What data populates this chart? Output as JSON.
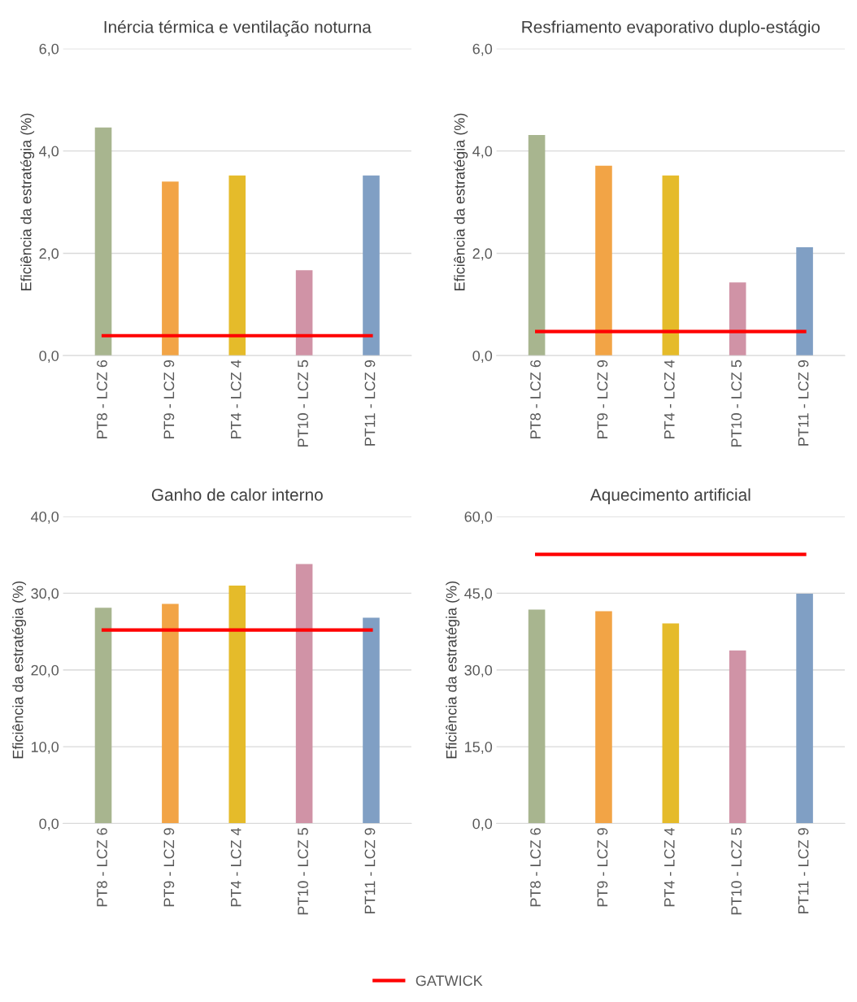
{
  "chart_data": [
    {
      "type": "bar",
      "title": "Inércia térmica e ventilação noturna",
      "ylabel": "Eficiência da estratégia (%)",
      "categories": [
        "PT8 - LCZ 6",
        "PT9 - LCZ 9",
        "PT4 - LCZ 4",
        "PT10 - LCZ 5",
        "PT11 - LCZ 9"
      ],
      "grid": "y",
      "ylim": [
        0,
        6
      ],
      "yticks": [
        {
          "value": 0,
          "label": "0,0"
        },
        {
          "value": 2,
          "label": "2,0"
        },
        {
          "value": 4,
          "label": "4,0"
        },
        {
          "value": 6,
          "label": "6,0"
        }
      ],
      "series": [
        {
          "type": "bar",
          "colors": [
            "#a8b58f",
            "#f2a446",
            "#e5bb2a",
            "#d093a6",
            "#809fc4"
          ],
          "values": [
            4.46,
            3.4,
            3.52,
            1.67,
            3.52
          ]
        },
        {
          "type": "line",
          "name": "GATWICK",
          "color": "#ff0000",
          "values": [
            0.39,
            0.39,
            0.39,
            0.39,
            0.39
          ]
        }
      ]
    },
    {
      "type": "bar",
      "title": "Resfriamento evaporativo duplo-estágio",
      "ylabel": "Eficiência da estratégia (%)",
      "categories": [
        "PT8 - LCZ 6",
        "PT9 - LCZ 9",
        "PT4 - LCZ 4",
        "PT10 - LCZ 5",
        "PT11 - LCZ 9"
      ],
      "grid": "y",
      "ylim": [
        0,
        6
      ],
      "yticks": [
        {
          "value": 0,
          "label": "0,0"
        },
        {
          "value": 2,
          "label": "2,0"
        },
        {
          "value": 4,
          "label": "4,0"
        },
        {
          "value": 6,
          "label": "6,0"
        }
      ],
      "series": [
        {
          "type": "bar",
          "colors": [
            "#a8b58f",
            "#f2a446",
            "#e5bb2a",
            "#d093a6",
            "#809fc4"
          ],
          "values": [
            4.31,
            3.71,
            3.52,
            1.43,
            2.12
          ]
        },
        {
          "type": "line",
          "name": "GATWICK",
          "color": "#ff0000",
          "values": [
            0.47,
            0.47,
            0.47,
            0.47,
            0.47
          ]
        }
      ]
    },
    {
      "type": "bar",
      "title": "Ganho de calor interno",
      "ylabel": "Eficiência da estratégia (%)",
      "categories": [
        "PT8 - LCZ 6",
        "PT9 - LCZ 9",
        "PT4 - LCZ 4",
        "PT10 - LCZ 5",
        "PT11 - LCZ 9"
      ],
      "grid": "y",
      "ylim": [
        0,
        40
      ],
      "yticks": [
        {
          "value": 0,
          "label": "0,0"
        },
        {
          "value": 10,
          "label": "10,0"
        },
        {
          "value": 20,
          "label": "20,0"
        },
        {
          "value": 30,
          "label": "30,0"
        },
        {
          "value": 40,
          "label": "40,0"
        }
      ],
      "series": [
        {
          "type": "bar",
          "colors": [
            "#a8b58f",
            "#f2a446",
            "#e5bb2a",
            "#d093a6",
            "#809fc4"
          ],
          "values": [
            28.1,
            28.6,
            31.0,
            33.8,
            26.8
          ]
        },
        {
          "type": "line",
          "name": "GATWICK",
          "color": "#ff0000",
          "values": [
            25.2,
            25.2,
            25.2,
            25.2,
            25.2
          ]
        }
      ]
    },
    {
      "type": "bar",
      "title": "Aquecimento artificial",
      "ylabel": "Eficiência da estratégia (%)",
      "categories": [
        "PT8 - LCZ 6",
        "PT9 - LCZ 9",
        "PT4 - LCZ 4",
        "PT10 - LCZ 5",
        "PT11 - LCZ 9"
      ],
      "grid": "y",
      "legend": "bottom",
      "ylim": [
        0,
        60
      ],
      "yticks": [
        {
          "value": 0,
          "label": "0,0"
        },
        {
          "value": 15,
          "label": "15,0"
        },
        {
          "value": 30,
          "label": "30,0"
        },
        {
          "value": 45,
          "label": "45,0"
        },
        {
          "value": 60,
          "label": "60,0"
        }
      ],
      "series": [
        {
          "type": "bar",
          "colors": [
            "#a8b58f",
            "#f2a446",
            "#e5bb2a",
            "#d093a6",
            "#809fc4"
          ],
          "values": [
            41.8,
            41.5,
            39.1,
            33.8,
            44.9
          ]
        },
        {
          "type": "line",
          "name": "GATWICK",
          "color": "#ff0000",
          "values": [
            52.6,
            52.6,
            52.6,
            52.6,
            52.6
          ]
        }
      ]
    }
  ]
}
